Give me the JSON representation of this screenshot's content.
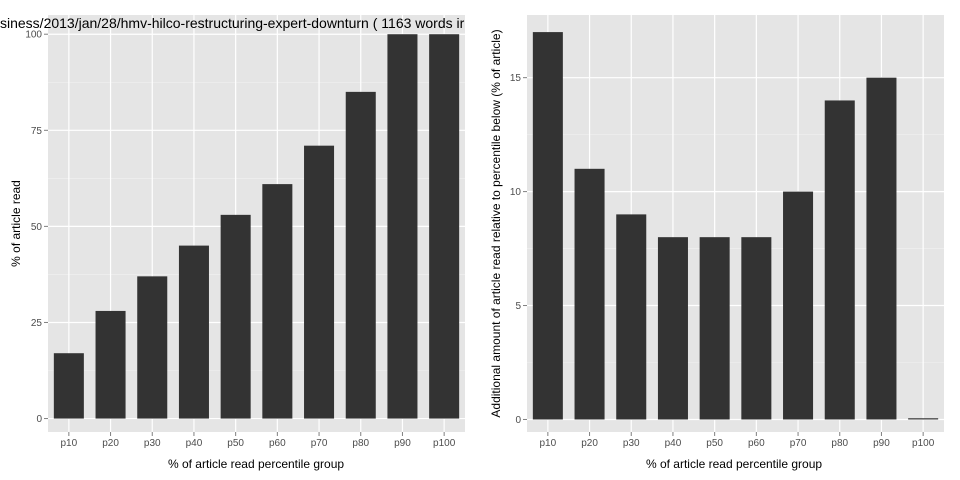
{
  "title": "siness/2013/jan/28/hmv-hilco-restructuring-expert-downturn ( 1163 words ir",
  "colors": {
    "panel_background": "#e5e5e5",
    "gridline_major": "#ffffff",
    "gridline_minor": "#f2f2f2",
    "bar_fill": "#333333",
    "tick_text": "#4d4d4d",
    "axis_title": "#000000"
  },
  "chart_data": [
    {
      "type": "bar",
      "categories": [
        "p10",
        "p20",
        "p30",
        "p40",
        "p50",
        "p60",
        "p70",
        "p80",
        "p90",
        "p100"
      ],
      "values": [
        17,
        28,
        37,
        45,
        53,
        61,
        71,
        85,
        100,
        100
      ],
      "xlabel": "% of article read percentile group",
      "ylabel": "% of article read",
      "ylim": [
        -3.5,
        105
      ],
      "yticks": [
        0,
        25,
        50,
        75,
        100
      ],
      "grid": true,
      "legend": "none"
    },
    {
      "type": "bar",
      "categories": [
        "p10",
        "p20",
        "p30",
        "p40",
        "p50",
        "p60",
        "p70",
        "p80",
        "p90",
        "p100"
      ],
      "values": [
        17,
        11,
        9,
        8,
        8,
        8,
        10,
        14,
        15,
        0
      ],
      "xlabel": "% of article read percentile group",
      "ylabel": "Additional amount of article read relative to percentile below (% of article)",
      "ylim": [
        -0.55,
        17.75
      ],
      "yticks": [
        0,
        5,
        10,
        15
      ],
      "grid": true,
      "legend": "none"
    }
  ]
}
